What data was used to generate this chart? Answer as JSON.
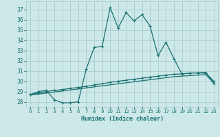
{
  "xlabel": "Humidex (Indice chaleur)",
  "bg_color": "#cce8e8",
  "grid_color": "#aacccc",
  "line_color": "#1a7070",
  "xlim": [
    -0.5,
    23.5
  ],
  "ylim": [
    27.5,
    37.8
  ],
  "xticks": [
    0,
    1,
    2,
    3,
    4,
    5,
    6,
    7,
    8,
    9,
    10,
    11,
    12,
    13,
    14,
    15,
    16,
    17,
    18,
    19,
    20,
    21,
    22,
    23
  ],
  "yticks": [
    28,
    29,
    30,
    31,
    32,
    33,
    34,
    35,
    36,
    37
  ],
  "series1_x": [
    0,
    1,
    2,
    3,
    4,
    5,
    6,
    7,
    8,
    9,
    10,
    11,
    12,
    13,
    14,
    15,
    16,
    17,
    18,
    19,
    20,
    21,
    22,
    23
  ],
  "series1_y": [
    28.7,
    29.0,
    29.1,
    28.2,
    27.9,
    27.9,
    28.0,
    31.2,
    33.3,
    33.4,
    37.2,
    35.2,
    36.7,
    35.9,
    36.5,
    35.4,
    32.5,
    33.8,
    32.2,
    30.7,
    30.8,
    30.8,
    30.8,
    30.0
  ],
  "series2_x": [
    0,
    1,
    2,
    3,
    4,
    5,
    6,
    7,
    8,
    9,
    10,
    11,
    12,
    13,
    14,
    15,
    16,
    17,
    18,
    19,
    20,
    21,
    22,
    23
  ],
  "series2_y": [
    28.7,
    28.85,
    29.0,
    29.1,
    29.2,
    29.3,
    29.4,
    29.5,
    29.65,
    29.75,
    29.9,
    30.0,
    30.1,
    30.2,
    30.3,
    30.4,
    30.5,
    30.6,
    30.68,
    30.72,
    30.8,
    30.83,
    30.87,
    29.8
  ],
  "series3_x": [
    0,
    1,
    2,
    3,
    4,
    5,
    6,
    7,
    8,
    9,
    10,
    11,
    12,
    13,
    14,
    15,
    16,
    17,
    18,
    19,
    20,
    21,
    22,
    23
  ],
  "series3_y": [
    28.65,
    28.75,
    28.85,
    28.95,
    29.05,
    29.15,
    29.25,
    29.35,
    29.45,
    29.55,
    29.65,
    29.75,
    29.85,
    29.95,
    30.05,
    30.15,
    30.25,
    30.35,
    30.45,
    30.5,
    30.55,
    30.6,
    30.65,
    29.8
  ]
}
